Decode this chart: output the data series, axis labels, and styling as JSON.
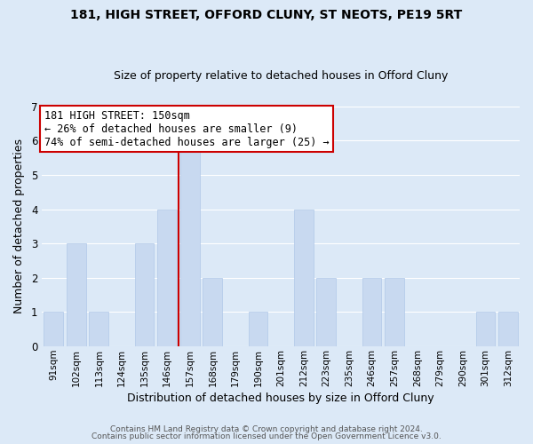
{
  "title": "181, HIGH STREET, OFFORD CLUNY, ST NEOTS, PE19 5RT",
  "subtitle": "Size of property relative to detached houses in Offord Cluny",
  "xlabel": "Distribution of detached houses by size in Offord Cluny",
  "ylabel": "Number of detached properties",
  "footnote1": "Contains HM Land Registry data © Crown copyright and database right 2024.",
  "footnote2": "Contains public sector information licensed under the Open Government Licence v3.0.",
  "bar_labels": [
    "91sqm",
    "102sqm",
    "113sqm",
    "124sqm",
    "135sqm",
    "146sqm",
    "157sqm",
    "168sqm",
    "179sqm",
    "190sqm",
    "201sqm",
    "212sqm",
    "223sqm",
    "235sqm",
    "246sqm",
    "257sqm",
    "268sqm",
    "279sqm",
    "290sqm",
    "301sqm",
    "312sqm"
  ],
  "bar_values": [
    1,
    3,
    1,
    0,
    3,
    4,
    6,
    2,
    0,
    1,
    0,
    4,
    2,
    0,
    2,
    2,
    0,
    0,
    0,
    1,
    1
  ],
  "bar_color": "#c8d9f0",
  "bar_edge_color": "#b0c8e8",
  "grid_color": "#ffffff",
  "bg_color": "#dce9f7",
  "reference_line_x": 5.5,
  "reference_line_color": "#cc0000",
  "annotation_line1": "181 HIGH STREET: 150sqm",
  "annotation_line2": "← 26% of detached houses are smaller (9)",
  "annotation_line3": "74% of semi-detached houses are larger (25) →",
  "annotation_box_color": "#ffffff",
  "annotation_box_edge_color": "#cc0000",
  "ylim": [
    0,
    7
  ],
  "yticks": [
    0,
    1,
    2,
    3,
    4,
    5,
    6,
    7
  ],
  "title_fontsize": 10,
  "subtitle_fontsize": 9
}
